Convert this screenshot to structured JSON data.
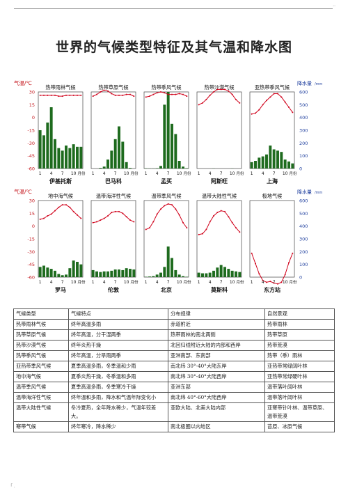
{
  "page": {
    "title": "世界的气候类型特征及其气温和降水图",
    "corner_mark": "..",
    "footer_mark": "「 ."
  },
  "axes": {
    "temp_label": "气温/℃",
    "precip_label": "降水量",
    "precip_unit": "/mm",
    "month_unit": "月份",
    "temp_ticks": [
      "30",
      "15",
      "0",
      "-15",
      "-30",
      "-45",
      "-60"
    ],
    "precip_ticks": [
      "600",
      "500",
      "400",
      "300",
      "200",
      "100",
      "0"
    ],
    "month_ticks": [
      "1",
      "4",
      "7",
      "10"
    ]
  },
  "colors": {
    "temp_line": "#d0021b",
    "bar": "#1e6b1e",
    "red_text": "#c4161c",
    "grid": "#444"
  },
  "chart_data": [
    {
      "type": "bar+line",
      "title": "热带雨林气候",
      "location": "伊基托斯",
      "ylim_temp": [
        -60,
        30
      ],
      "ylim_precip": [
        0,
        600
      ],
      "temp": [
        26,
        26,
        26,
        26,
        26,
        25,
        25,
        26,
        26,
        26,
        26,
        26
      ],
      "precip": [
        300,
        260,
        360,
        480,
        230,
        160,
        140,
        180,
        160,
        190,
        170,
        170
      ]
    },
    {
      "type": "bar+line",
      "title": "热带草原气候",
      "location": "巴马科",
      "ylim_temp": [
        -60,
        30
      ],
      "ylim_precip": [
        0,
        600
      ],
      "temp": [
        25,
        27,
        30,
        32,
        31,
        28,
        26,
        26,
        26,
        27,
        27,
        25
      ],
      "precip": [
        0,
        0,
        5,
        15,
        70,
        140,
        230,
        330,
        210,
        50,
        5,
        0
      ]
    },
    {
      "type": "bar+line",
      "title": "热带季风气候",
      "location": "孟买",
      "ylim_temp": [
        -60,
        30
      ],
      "ylim_precip": [
        0,
        600
      ],
      "temp": [
        24,
        25,
        27,
        29,
        30,
        29,
        27,
        27,
        27,
        28,
        27,
        25
      ],
      "precip": [
        2,
        1,
        1,
        3,
        20,
        500,
        620,
        350,
        270,
        60,
        15,
        3
      ]
    },
    {
      "type": "bar+line",
      "title": "热带沙漠气候",
      "location": "阿斯旺",
      "ylim_temp": [
        -60,
        30
      ],
      "ylim_precip": [
        0,
        600
      ],
      "temp": [
        15,
        17,
        21,
        26,
        30,
        33,
        33,
        33,
        31,
        27,
        21,
        17
      ],
      "precip": [
        0,
        0,
        0,
        0,
        1,
        0,
        0,
        0,
        0,
        1,
        0,
        0
      ]
    },
    {
      "type": "bar+line",
      "title": "亚热带季风气候",
      "location": "上海",
      "ylim_temp": [
        -60,
        30
      ],
      "ylim_precip": [
        0,
        600
      ],
      "temp": [
        4,
        5,
        9,
        15,
        20,
        24,
        28,
        28,
        24,
        18,
        12,
        6
      ],
      "precip": [
        50,
        60,
        85,
        95,
        110,
        180,
        150,
        140,
        130,
        70,
        55,
        40
      ]
    },
    {
      "type": "bar+line",
      "title": "地中海气候",
      "location": "罗马",
      "ylim_temp": [
        -60,
        30
      ],
      "ylim_precip": [
        0,
        600
      ],
      "temp": [
        8,
        9,
        12,
        14,
        18,
        22,
        25,
        25,
        22,
        17,
        13,
        9
      ],
      "precip": [
        80,
        90,
        75,
        65,
        50,
        25,
        15,
        20,
        70,
        130,
        120,
        100
      ]
    },
    {
      "type": "bar+line",
      "title": "温带海洋性气候",
      "location": "伦敦",
      "ylim_temp": [
        -60,
        30
      ],
      "ylim_precip": [
        0,
        600
      ],
      "temp": [
        4,
        5,
        7,
        9,
        12,
        16,
        17,
        17,
        15,
        11,
        7,
        5
      ],
      "precip": [
        55,
        45,
        40,
        45,
        45,
        50,
        60,
        60,
        55,
        70,
        65,
        60
      ]
    },
    {
      "type": "bar+line",
      "title": "温带季风气候",
      "location": "北京",
      "ylim_temp": [
        -60,
        30
      ],
      "ylim_precip": [
        0,
        600
      ],
      "temp": [
        -4,
        -2,
        5,
        14,
        20,
        24,
        26,
        25,
        20,
        13,
        4,
        -2
      ],
      "precip": [
        3,
        5,
        8,
        20,
        35,
        80,
        240,
        150,
        55,
        20,
        8,
        3
      ]
    },
    {
      "type": "bar+line",
      "title": "温带大陆性气候",
      "location": "莫斯科",
      "ylim_temp": [
        -60,
        30
      ],
      "ylim_precip": [
        0,
        600
      ],
      "temp": [
        -10,
        -9,
        -4,
        5,
        12,
        16,
        18,
        17,
        11,
        4,
        -2,
        -7
      ],
      "precip": [
        35,
        30,
        30,
        35,
        50,
        75,
        95,
        80,
        65,
        50,
        45,
        40
      ]
    },
    {
      "type": "bar+line",
      "title": "极地气候",
      "location": "东方站",
      "ylim_temp": [
        -60,
        30
      ],
      "ylim_precip": [
        0,
        600
      ],
      "temp": [
        -32,
        -44,
        -56,
        -64,
        -66,
        -65,
        -67,
        -68,
        -66,
        -57,
        -43,
        -32
      ],
      "precip": [
        0,
        0,
        0,
        0,
        0,
        0,
        0,
        0,
        0,
        0,
        0,
        0
      ]
    }
  ],
  "table": {
    "headers": [
      "气候类型",
      "气候特点",
      "分布规律",
      "自然景观"
    ],
    "rows": [
      [
        "热带雨林气候",
        "终年高温多雨",
        "赤道附近",
        "热带雨林"
      ],
      [
        "热带草原气候",
        "终年高温，分干湿两季",
        "热带雨林的南北两侧",
        "热带草原"
      ],
      [
        "热带沙漠气候",
        "终年炎热干燥",
        "北回归线附近大陆的内部和西岸",
        "热带荒漠"
      ],
      [
        "热带季风气候",
        "终年高温，分旱雨两季",
        "亚洲南部、东南部",
        "热带（季）雨林"
      ],
      [
        "亚热带季风气候",
        "夏季高温多雨，冬季温和少雨",
        "南北纬 30°-40°大陆东岸",
        "亚热带常绿阔叶林"
      ],
      [
        "地中海气候",
        "夏季炎热干燥，冬季温和多雨",
        "南北纬 30°-40°大陆西岸",
        "亚热带常绿硬叶林"
      ],
      [
        "温带季风气候",
        "夏季高温多雨，冬季寒冷干燥",
        "亚洲东部",
        "温带落叶阔叶林"
      ],
      [
        "温带海洋性气候",
        "终年温和多雨，降水和气温年际变化小",
        "南北纬 40°-60°大陆西岸",
        "温带落叶阔叶林"
      ],
      [
        "温带大陆性气候",
        "冬冷夏热，全年降水稀少，气温年较差大。",
        "亚欧大陆、北美大陆内部",
        "亚寒带针叶林、温带草原、温带荒漠"
      ],
      [
        "寒带气候",
        "终年寒冷，降水稀少",
        "南北极圈以内地区",
        "苔原、冰原气候"
      ]
    ]
  }
}
